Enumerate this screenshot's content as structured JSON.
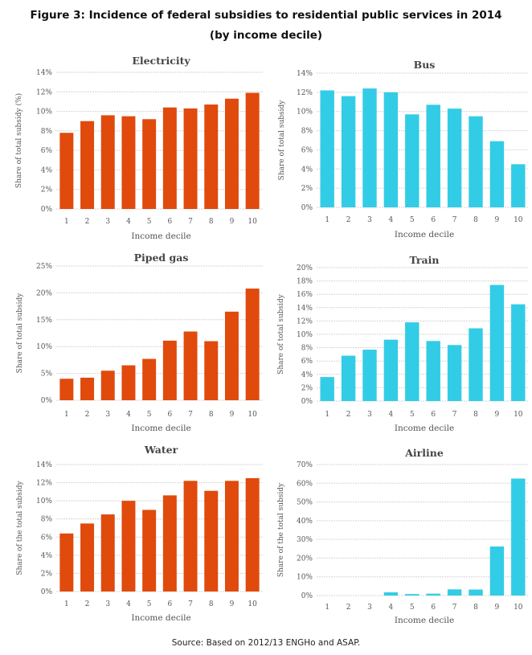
{
  "title_line1": "Figure 3: Incidence of federal subsidies to residential public services in 2014",
  "title_line2": "(by income decile)",
  "source": "Source: Based on 2012/13 ENGHo and ASAP.",
  "colors": {
    "orange": "#E04A0C",
    "cyan": "#33CCE6",
    "grid": "#d6d6d6"
  },
  "chart_data": [
    {
      "id": "electricity",
      "type": "bar",
      "title": "Electricity",
      "xlabel": "Income decile",
      "ylabel": "Share of  total subsidy (%)",
      "categories": [
        "1",
        "2",
        "3",
        "4",
        "5",
        "6",
        "7",
        "8",
        "9",
        "10"
      ],
      "values": [
        7.8,
        9.0,
        9.6,
        9.5,
        9.2,
        10.4,
        10.3,
        10.7,
        11.3,
        11.9
      ],
      "ylim": [
        0,
        14
      ],
      "yticks": [
        0,
        2,
        4,
        6,
        8,
        10,
        12,
        14
      ],
      "ytick_labels": [
        "0%",
        "2%",
        "4%",
        "6%",
        "8%",
        "10%",
        "12%",
        "14%"
      ],
      "color": "#E04A0C"
    },
    {
      "id": "bus",
      "type": "bar",
      "title": "Bus",
      "xlabel": "Income decile",
      "ylabel": "Share of total subsidy",
      "categories": [
        "1",
        "2",
        "3",
        "4",
        "5",
        "6",
        "7",
        "8",
        "9",
        "10"
      ],
      "values": [
        12.2,
        11.6,
        12.4,
        12.0,
        9.7,
        10.7,
        10.3,
        9.5,
        6.9,
        4.5
      ],
      "ylim": [
        0,
        14
      ],
      "yticks": [
        0,
        2,
        4,
        6,
        8,
        10,
        12,
        14
      ],
      "ytick_labels": [
        "0%",
        "2%",
        "4%",
        "6%",
        "8%",
        "10%",
        "12%",
        "14%"
      ],
      "color": "#33CCE6"
    },
    {
      "id": "piped-gas",
      "type": "bar",
      "title": "Piped gas",
      "xlabel": "Income decile",
      "ylabel": "Share of total subsidy",
      "categories": [
        "1",
        "2",
        "3",
        "4",
        "5",
        "6",
        "7",
        "8",
        "9",
        "10"
      ],
      "values": [
        4.0,
        4.2,
        5.5,
        6.5,
        7.7,
        11.1,
        12.8,
        11.0,
        16.5,
        20.8
      ],
      "ylim": [
        0,
        25
      ],
      "yticks": [
        0,
        5,
        10,
        15,
        20,
        25
      ],
      "ytick_labels": [
        "0%",
        "5%",
        "10%",
        "15%",
        "20%",
        "25%"
      ],
      "color": "#E04A0C"
    },
    {
      "id": "train",
      "type": "bar",
      "title": "Train",
      "xlabel": "Income decile",
      "ylabel": "Share of total subsidy",
      "categories": [
        "1",
        "2",
        "3",
        "4",
        "5",
        "6",
        "7",
        "8",
        "9",
        "10"
      ],
      "values": [
        3.6,
        6.8,
        7.7,
        9.2,
        11.8,
        9.0,
        8.4,
        10.9,
        17.4,
        14.5
      ],
      "ylim": [
        0,
        20
      ],
      "yticks": [
        0,
        2,
        4,
        6,
        8,
        10,
        12,
        14,
        16,
        18,
        20
      ],
      "ytick_labels": [
        "0%",
        "2%",
        "4%",
        "6%",
        "8%",
        "10%",
        "12%",
        "14%",
        "16%",
        "18%",
        "20%"
      ],
      "color": "#33CCE6"
    },
    {
      "id": "water",
      "type": "bar",
      "title": "Water",
      "xlabel": "Income decile",
      "ylabel": "Share of the total subsidy",
      "categories": [
        "1",
        "2",
        "3",
        "4",
        "5",
        "6",
        "7",
        "8",
        "9",
        "10"
      ],
      "values": [
        6.4,
        7.5,
        8.5,
        10.0,
        9.0,
        10.6,
        12.2,
        11.1,
        12.2,
        12.5
      ],
      "ylim": [
        0,
        14
      ],
      "yticks": [
        0,
        2,
        4,
        6,
        8,
        10,
        12,
        14
      ],
      "ytick_labels": [
        "0%",
        "2%",
        "4%",
        "6%",
        "8%",
        "10%",
        "12%",
        "14%"
      ],
      "color": "#E04A0C"
    },
    {
      "id": "airline",
      "type": "bar",
      "title": "Airline",
      "xlabel": "Income decile",
      "ylabel": "Share of the total subsidy",
      "categories": [
        "1",
        "2",
        "3",
        "4",
        "5",
        "6",
        "7",
        "8",
        "9",
        "10"
      ],
      "values": [
        0.0,
        0.0,
        0.0,
        1.7,
        0.8,
        1.0,
        3.3,
        3.2,
        26.2,
        62.5
      ],
      "ylim": [
        0,
        70
      ],
      "yticks": [
        0,
        10,
        20,
        30,
        40,
        50,
        60,
        70
      ],
      "ytick_labels": [
        "0%",
        "10%",
        "20%",
        "30%",
        "40%",
        "50%",
        "60%",
        "70%"
      ],
      "color": "#33CCE6"
    }
  ]
}
